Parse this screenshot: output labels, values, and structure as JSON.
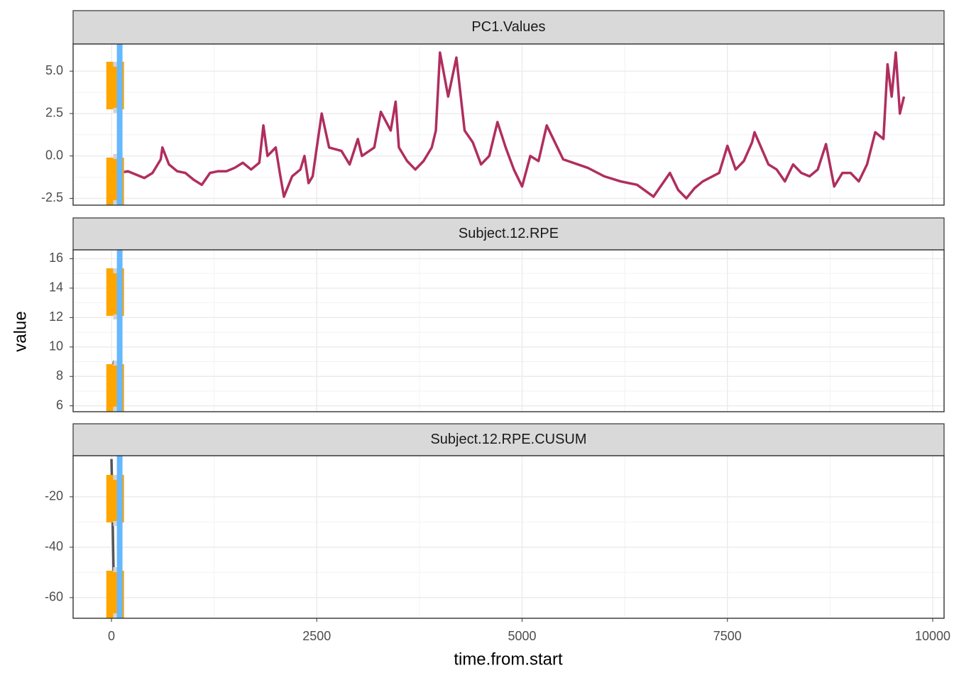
{
  "chart_data": {
    "type": "line",
    "x_label": "time.from.start",
    "y_label": "value",
    "xlim": [
      -467,
      10138
    ],
    "xticks": [
      0,
      2500,
      5000,
      7500,
      10000
    ],
    "grid": true,
    "minor_grid": true,
    "vlines": [
      {
        "x": 45,
        "color": "#FFA500",
        "dash": "dashed"
      },
      {
        "x": 55,
        "color": "#D3D3D3",
        "dash": "dotted"
      },
      {
        "x": 100,
        "color": "#66B8FF",
        "dash": "solid"
      }
    ],
    "panels": [
      {
        "title": "PC1.Values",
        "ylim": [
          -2.9,
          6.6
        ],
        "yticks": [
          -2.5,
          {
            "value": 0,
            "label": "0.0"
          },
          2.5,
          {
            "value": 5,
            "label": "5.0"
          }
        ],
        "series": [
          {
            "color": "#B02E5E",
            "x": [
              100,
              200,
              300,
              400,
              500,
              600,
              620,
              700,
              800,
              900,
              1000,
              1100,
              1200,
              1300,
              1400,
              1500,
              1600,
              1700,
              1800,
              1850,
              1900,
              2000,
              2050,
              2100,
              2200,
              2300,
              2350,
              2400,
              2450,
              2500,
              2560,
              2650,
              2800,
              2900,
              3000,
              3050,
              3200,
              3280,
              3400,
              3460,
              3500,
              3600,
              3700,
              3800,
              3900,
              3950,
              4000,
              4100,
              4200,
              4300,
              4400,
              4500,
              4600,
              4700,
              4800,
              4900,
              5000,
              5100,
              5200,
              5300,
              5500,
              5800,
              6000,
              6200,
              6400,
              6600,
              6800,
              6900,
              7000,
              7100,
              7200,
              7400,
              7500,
              7600,
              7700,
              7800,
              7830,
              8000,
              8100,
              8200,
              8300,
              8400,
              8500,
              8600,
              8700,
              8800,
              8900,
              9000,
              9100,
              9200,
              9300,
              9400,
              9450,
              9500,
              9550,
              9600,
              9650
            ],
            "values": [
              -1.0,
              -0.9,
              -1.1,
              -1.3,
              -1.0,
              -0.2,
              0.5,
              -0.5,
              -0.9,
              -1.0,
              -1.4,
              -1.7,
              -1.0,
              -0.9,
              -0.9,
              -0.7,
              -0.4,
              -0.8,
              -0.4,
              1.8,
              0.0,
              0.5,
              -1.0,
              -2.4,
              -1.2,
              -0.8,
              0.0,
              -1.6,
              -1.2,
              0.5,
              2.5,
              0.5,
              0.3,
              -0.5,
              1.0,
              0.0,
              0.5,
              2.6,
              1.5,
              3.2,
              0.5,
              -0.3,
              -0.8,
              -0.3,
              0.5,
              1.5,
              6.1,
              3.5,
              5.8,
              1.5,
              0.8,
              -0.5,
              0.0,
              2.0,
              0.5,
              -0.8,
              -1.8,
              0.0,
              -0.3,
              1.8,
              -0.2,
              -0.7,
              -1.2,
              -1.5,
              -1.7,
              -2.4,
              -1.0,
              -2.0,
              -2.5,
              -1.9,
              -1.5,
              -1.0,
              0.6,
              -0.8,
              -0.3,
              0.8,
              1.4,
              -0.5,
              -0.8,
              -1.5,
              -0.5,
              -1.0,
              -1.2,
              -0.8,
              0.7,
              -1.8,
              -1.0,
              -1.0,
              -1.5,
              -0.5,
              1.4,
              1.0,
              5.4,
              3.5,
              6.1,
              2.5,
              3.5
            ]
          }
        ]
      },
      {
        "title": "Subject.12.RPE",
        "ylim": [
          5.6,
          16.6
        ],
        "yticks": [
          6,
          8,
          10,
          12,
          14,
          16
        ],
        "series": [
          {
            "color": "#000000",
            "x": [
              20,
              30,
              40
            ],
            "values": [
              8,
              9,
              8.5
            ]
          }
        ]
      },
      {
        "title": "Subject.12.RPE.CUSUM",
        "ylim": [
          -68.2,
          -3.7
        ],
        "yticks": [
          -60,
          -40,
          -20
        ],
        "series": [
          {
            "color": "#555555",
            "x": [
              0,
              10,
              20,
              30
            ],
            "values": [
              -5,
              -20,
              -40,
              -58
            ]
          }
        ]
      }
    ]
  }
}
